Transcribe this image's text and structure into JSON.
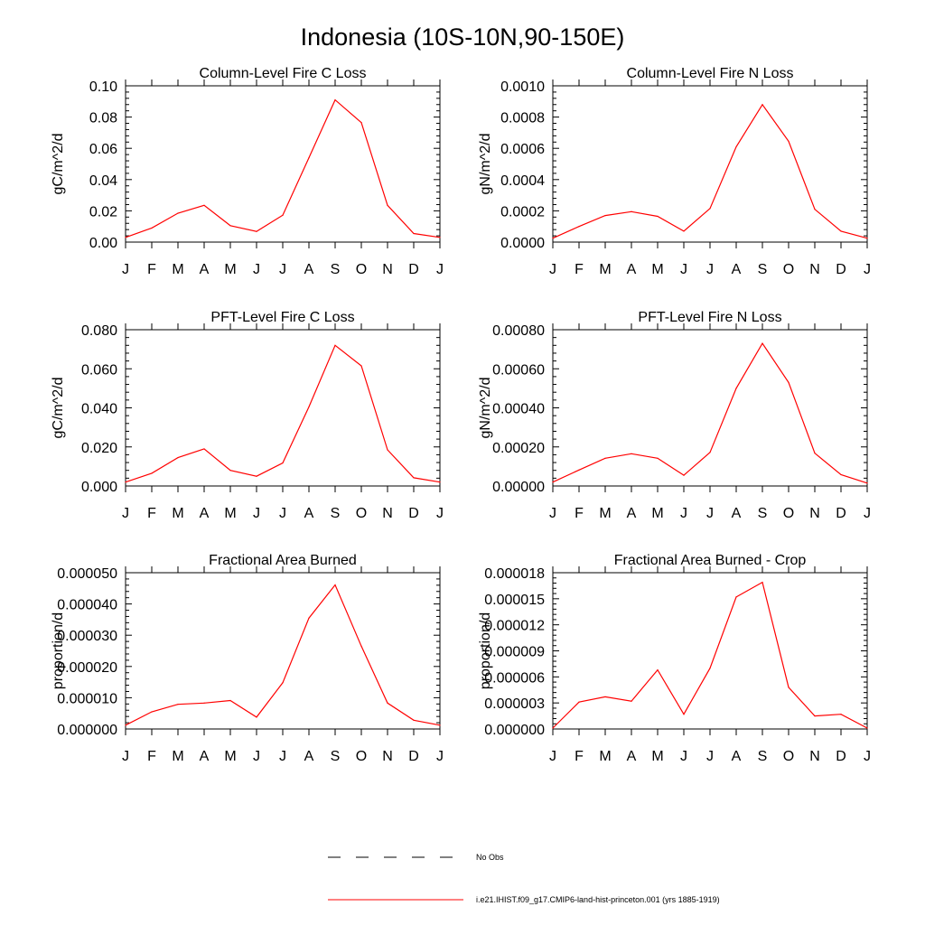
{
  "page_title": "Indonesia (10S-10N,90-150E)",
  "months": [
    "J",
    "F",
    "M",
    "A",
    "M",
    "J",
    "J",
    "A",
    "S",
    "O",
    "N",
    "D",
    "J"
  ],
  "series_color": "#ff0000",
  "legend": {
    "no_obs_label": "No Obs",
    "model_label": "i.e21.IHIST.f09_g17.CMIP6-land-hist-princeton.001 (yrs 1885-1919)"
  },
  "chart_data": [
    {
      "type": "line",
      "title": "Column-Level Fire C Loss",
      "ylabel": "gC/m^2/d",
      "ylim": [
        0,
        0.1
      ],
      "yticks": [
        "0.00",
        "0.02",
        "0.04",
        "0.06",
        "0.08",
        "0.10"
      ],
      "x": [
        "J",
        "F",
        "M",
        "A",
        "M",
        "J",
        "J",
        "A",
        "S",
        "O",
        "N",
        "D",
        "J"
      ],
      "values": [
        0.003,
        0.009,
        0.0185,
        0.0235,
        0.0105,
        0.0068,
        0.0172,
        0.054,
        0.091,
        0.0765,
        0.0235,
        0.0055,
        0.003
      ]
    },
    {
      "type": "line",
      "title": "Column-Level Fire N Loss",
      "ylabel": "gN/m^2/d",
      "ylim": [
        0,
        0.001
      ],
      "yticks": [
        "0.0000",
        "0.0002",
        "0.0004",
        "0.0006",
        "0.0008",
        "0.0010"
      ],
      "x": [
        "J",
        "F",
        "M",
        "A",
        "M",
        "J",
        "J",
        "A",
        "S",
        "O",
        "N",
        "D",
        "J"
      ],
      "values": [
        2.5e-05,
        0.0001,
        0.00017,
        0.000195,
        0.000165,
        7e-05,
        0.000215,
        0.00061,
        0.00088,
        0.000645,
        0.00021,
        7e-05,
        2.5e-05
      ]
    },
    {
      "type": "line",
      "title": "PFT-Level Fire C Loss",
      "ylabel": "gC/m^2/d",
      "ylim": [
        0,
        0.08
      ],
      "yticks": [
        "0.000",
        "0.020",
        "0.040",
        "0.060",
        "0.080"
      ],
      "x": [
        "J",
        "F",
        "M",
        "A",
        "M",
        "J",
        "J",
        "A",
        "S",
        "O",
        "N",
        "D",
        "J"
      ],
      "values": [
        0.002,
        0.0065,
        0.0145,
        0.019,
        0.008,
        0.005,
        0.0118,
        0.0405,
        0.072,
        0.0615,
        0.0185,
        0.0042,
        0.002
      ]
    },
    {
      "type": "line",
      "title": "PFT-Level Fire N Loss",
      "ylabel": "gN/m^2/d",
      "ylim": [
        0,
        0.0008
      ],
      "yticks": [
        "0.00000",
        "0.00020",
        "0.00040",
        "0.00060",
        "0.00080"
      ],
      "x": [
        "J",
        "F",
        "M",
        "A",
        "M",
        "J",
        "J",
        "A",
        "S",
        "O",
        "N",
        "D",
        "J"
      ],
      "values": [
        2e-05,
        8.2e-05,
        0.000142,
        0.000165,
        0.000142,
        5.5e-05,
        0.000172,
        0.0005,
        0.00073,
        0.00053,
        0.000168,
        5.8e-05,
        1.5e-05
      ]
    },
    {
      "type": "line",
      "title": "Fractional Area Burned",
      "ylabel": "proportion/d",
      "ylim": [
        0,
        5e-05
      ],
      "yticks": [
        "0.000000",
        "0.000010",
        "0.000020",
        "0.000030",
        "0.000040",
        "0.000050"
      ],
      "x": [
        "J",
        "F",
        "M",
        "A",
        "M",
        "J",
        "J",
        "A",
        "S",
        "O",
        "N",
        "D",
        "J"
      ],
      "values": [
        1.2e-06,
        5.5e-06,
        7.9e-06,
        8.3e-06,
        9.1e-06,
        3.8e-06,
        1.48e-05,
        3.55e-05,
        4.61e-05,
        2.65e-05,
        8.3e-06,
        2.8e-06,
        1.2e-06
      ]
    },
    {
      "type": "line",
      "title": "Fractional Area Burned - Crop",
      "ylabel": "proportion/d",
      "ylim": [
        0,
        1.8e-05
      ],
      "yticks": [
        "0.000000",
        "0.000003",
        "0.000006",
        "0.000009",
        "0.000012",
        "0.000015",
        "0.000018"
      ],
      "x": [
        "J",
        "F",
        "M",
        "A",
        "M",
        "J",
        "J",
        "A",
        "S",
        "O",
        "N",
        "D",
        "J"
      ],
      "values": [
        1e-07,
        3.1e-06,
        3.7e-06,
        3.2e-06,
        6.8e-06,
        1.7e-06,
        7e-06,
        1.52e-05,
        1.69e-05,
        4.8e-06,
        1.5e-06,
        1.7e-06,
        1e-07
      ]
    }
  ]
}
